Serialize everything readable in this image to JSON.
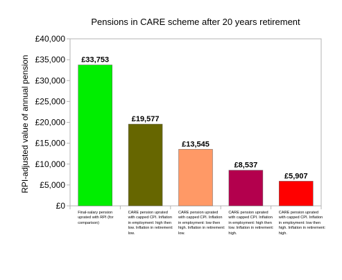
{
  "chart_data": {
    "type": "bar",
    "title": "Pensions in CARE scheme after 20 years retirement",
    "ylabel": "RPI-adjusted value of annual pension",
    "xlabel": "",
    "ylim": [
      0,
      40000
    ],
    "yticks": [
      0,
      5000,
      10000,
      15000,
      20000,
      25000,
      30000,
      35000,
      40000
    ],
    "ytick_labels": [
      "£0",
      "£5,000",
      "£10,000",
      "£15,000",
      "£20,000",
      "£25,000",
      "£30,000",
      "£35,000",
      "£40,000"
    ],
    "grid": false,
    "legend": "none",
    "categories": [
      "Final-salary pension uprated with RPI (for comparison)",
      "CARE pension uprated with capped CPI. Inflation in employment: high then low. Inflation in retirement: low.",
      "CARE pension uprated with capped CPI. Inflation in employment: low then high. Inflation in retirement: low.",
      "CARE pension uprated with capped CPI. Inflation in employment: high then low. Inflation in retirement: high.",
      "CARE pension uprated with capped CPI. Inflation in employment: low then high. Inflation in retirement: high."
    ],
    "values": [
      33753,
      19577,
      13545,
      8537,
      5907
    ],
    "data_labels": [
      "£33,753",
      "£19,577",
      "£13,545",
      "£8,537",
      "£5,907"
    ],
    "colors": [
      "#00ee00",
      "#666600",
      "#ff9966",
      "#b3004d",
      "#ff0000"
    ]
  }
}
